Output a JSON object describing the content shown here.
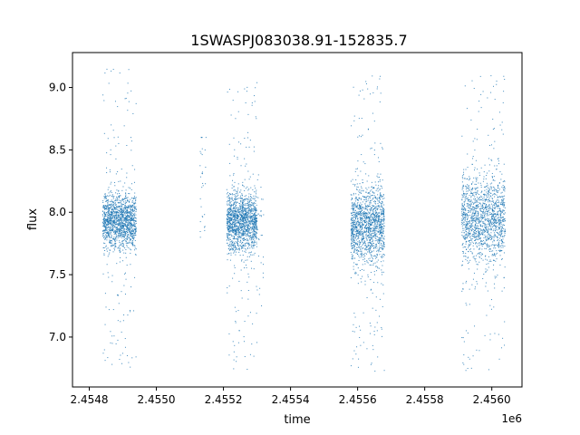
{
  "chart_data": {
    "type": "scatter",
    "title": "1SWASPJ083038.91-152835.7",
    "xlabel": "time",
    "ylabel": "flux",
    "x_offset_label": "1e6",
    "xlim": [
      2.45475,
      2.45609
    ],
    "ylim": [
      6.6,
      9.28
    ],
    "x_ticks": [
      2.4548,
      2.455,
      2.4552,
      2.4554,
      2.4556,
      2.4558,
      2.456
    ],
    "x_tick_labels": [
      "2.4548",
      "2.4550",
      "2.4552",
      "2.4554",
      "2.4556",
      "2.4558",
      "2.4560"
    ],
    "y_ticks": [
      7.0,
      7.5,
      8.0,
      8.5,
      9.0
    ],
    "y_tick_labels": [
      "7.0",
      "7.5",
      "8.0",
      "8.5",
      "9.0"
    ],
    "grid": false,
    "marker_color": "#1f77b4",
    "series": [
      {
        "segments": [
          {
            "x_range": [
              2.45484,
              2.45494
            ],
            "y_center": 7.93,
            "y_spread": 0.11,
            "y_min": 6.75,
            "y_max": 9.15,
            "density": "dense"
          },
          {
            "x_range": [
              2.45513,
              2.45515
            ],
            "y_center": 8.1,
            "y_spread": 0.35,
            "y_min": 7.8,
            "y_max": 8.6,
            "density": "sparse"
          },
          {
            "x_range": [
              2.45521,
              2.4553
            ],
            "y_center": 7.92,
            "y_spread": 0.12,
            "y_min": 6.72,
            "y_max": 9.05,
            "density": "dense"
          },
          {
            "x_range": [
              2.4553,
              2.45532
            ],
            "y_center": 7.8,
            "y_spread": 0.25,
            "y_min": 7.25,
            "y_max": 8.3,
            "density": "sparse"
          },
          {
            "x_range": [
              2.45558,
              2.45568
            ],
            "y_center": 7.9,
            "y_spread": 0.15,
            "y_min": 6.72,
            "y_max": 9.15,
            "density": "dense"
          },
          {
            "x_range": [
              2.45591,
              2.45604
            ],
            "y_center": 7.95,
            "y_spread": 0.17,
            "y_min": 6.72,
            "y_max": 9.12,
            "density": "dense"
          }
        ]
      }
    ]
  }
}
